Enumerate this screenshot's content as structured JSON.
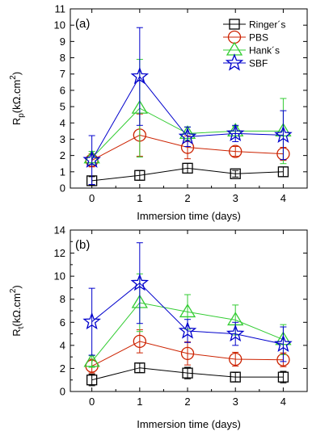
{
  "chart_data": [
    {
      "type": "line",
      "panel_label": "(a)",
      "xlabel": "Immersion time (days)",
      "ylabel": "Rp(kΩ.cm²)",
      "ylabel_main": "R",
      "ylabel_sub": "p",
      "ylabel_rest": "(kΩ.cm",
      "ylabel_sup": "2",
      "ylabel_end": ")",
      "x": [
        0,
        1,
        2,
        3,
        4
      ],
      "xlim": [
        -0.45,
        4.5
      ],
      "ylim": [
        0,
        11
      ],
      "xticks": [
        "0",
        "1",
        "2",
        "3",
        "4"
      ],
      "yticks": [
        "0",
        "1",
        "2",
        "3",
        "4",
        "5",
        "6",
        "7",
        "8",
        "9",
        "10",
        "11"
      ],
      "legend": "top-right",
      "grid": false,
      "series": [
        {
          "name": "Ringer´s",
          "marker": "square",
          "color": "#000000",
          "values": [
            0.45,
            0.78,
            1.22,
            0.88,
            1.0
          ],
          "err": [
            0.25,
            0.3,
            0.3,
            0.2,
            0.3
          ]
        },
        {
          "name": "PBS",
          "marker": "circle",
          "color": "#cc2200",
          "values": [
            1.7,
            3.25,
            2.5,
            2.25,
            2.1
          ],
          "err": [
            0.4,
            1.3,
            0.7,
            0.3,
            0.4
          ]
        },
        {
          "name": "Hank´s",
          "marker": "triangle",
          "color": "#33cc33",
          "values": [
            1.85,
            4.9,
            3.35,
            3.5,
            3.5
          ],
          "err": [
            0.4,
            3.0,
            0.4,
            0.3,
            2.0
          ]
        },
        {
          "name": "SBF",
          "marker": "star",
          "color": "#0000cc",
          "values": [
            1.72,
            6.85,
            3.15,
            3.35,
            3.25
          ],
          "err": [
            1.5,
            3.0,
            0.6,
            0.5,
            1.5
          ]
        }
      ]
    },
    {
      "type": "line",
      "panel_label": "(b)",
      "xlabel": "Immersion time (days)",
      "ylabel": "Rt(kΩ.cm²)",
      "ylabel_main": "R",
      "ylabel_sub": "t",
      "ylabel_rest": "(kΩ.cm",
      "ylabel_sup": "2",
      "ylabel_end": ")",
      "x": [
        0,
        1,
        2,
        3,
        4
      ],
      "xlim": [
        -0.45,
        4.5
      ],
      "ylim": [
        0,
        14
      ],
      "xticks": [
        "0",
        "1",
        "2",
        "3",
        "4"
      ],
      "yticks": [
        "0",
        "2",
        "4",
        "6",
        "8",
        "10",
        "12",
        "14"
      ],
      "legend": "none",
      "grid": false,
      "series": [
        {
          "name": "Ringer´s",
          "marker": "square",
          "color": "#000000",
          "values": [
            1.0,
            2.05,
            1.6,
            1.25,
            1.25
          ],
          "err": [
            0.5,
            0.4,
            0.5,
            0.4,
            0.5
          ]
        },
        {
          "name": "PBS",
          "marker": "circle",
          "color": "#cc2200",
          "values": [
            2.2,
            4.35,
            3.3,
            2.8,
            2.75
          ],
          "err": [
            0.6,
            1.0,
            1.0,
            0.6,
            0.6
          ]
        },
        {
          "name": "Hank´s",
          "marker": "triangle",
          "color": "#33cc33",
          "values": [
            2.6,
            7.7,
            6.9,
            6.2,
            4.5
          ],
          "err": [
            0.5,
            2.5,
            1.5,
            1.3,
            1.3
          ]
        },
        {
          "name": "SBF",
          "marker": "star",
          "color": "#0000cc",
          "values": [
            6.05,
            9.4,
            5.25,
            5.0,
            4.1
          ],
          "err": [
            2.9,
            3.5,
            1.0,
            1.0,
            1.5
          ]
        }
      ]
    }
  ]
}
